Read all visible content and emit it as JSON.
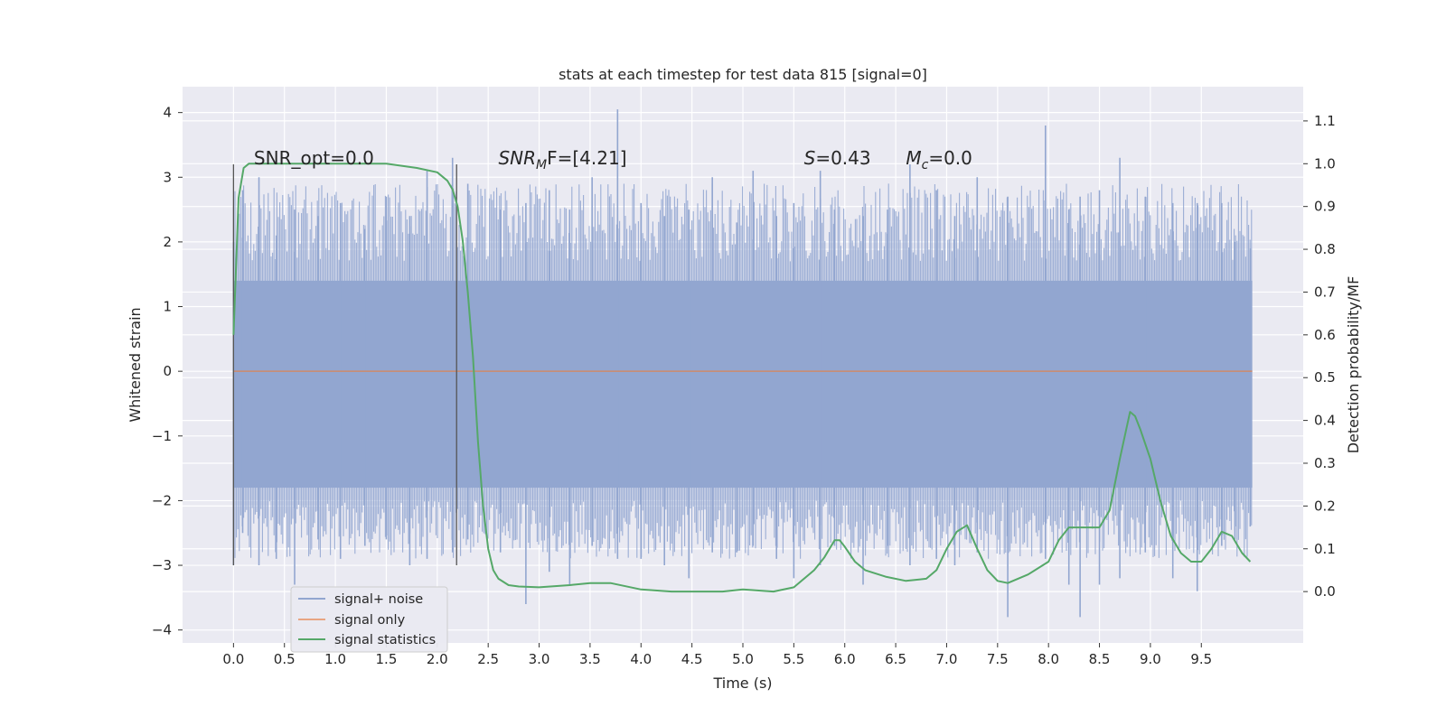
{
  "chart_data": {
    "type": "line",
    "title": "stats at each timestep for test data 815 [signal=0]",
    "xlabel": "Time (s)",
    "ylabel": "Whitened strain",
    "y2label": "Detection probability/MF",
    "xlim": [
      -0.5,
      10.5
    ],
    "ylim": [
      -4.2,
      4.4
    ],
    "y2lim": [
      -0.12,
      1.18
    ],
    "xticks": [
      "0.0",
      "0.5",
      "1.0",
      "1.5",
      "2.0",
      "2.5",
      "3.0",
      "3.5",
      "4.0",
      "4.5",
      "5.0",
      "5.5",
      "6.0",
      "6.5",
      "7.0",
      "7.5",
      "8.0",
      "8.5",
      "9.0",
      "9.5"
    ],
    "yticks": [
      "4",
      "3",
      "2",
      "1",
      "0",
      "−1",
      "−2",
      "−3",
      "−4"
    ],
    "y2ticks": [
      "1.1",
      "1.0",
      "0.9",
      "0.8",
      "0.7",
      "0.6",
      "0.5",
      "0.4",
      "0.3",
      "0.2",
      "0.1",
      "0.0"
    ],
    "grid": true,
    "legend_position": "lower-left",
    "annotations": [
      {
        "id": "snr_opt",
        "text": "SNR_opt=0.0",
        "x": 0.2,
        "y": 3.2
      },
      {
        "id": "snr_mf",
        "prefix": "SNR",
        "sub": "M",
        "suffix": "F=[4.21]",
        "x": 2.6,
        "y": 3.2
      },
      {
        "id": "s",
        "italic": "S",
        "suffix": "=0.43",
        "x": 5.6,
        "y": 3.2
      },
      {
        "id": "mc",
        "italic": "M",
        "sub": "c",
        "suffix": "=0.0",
        "x": 6.6,
        "y": 3.2
      }
    ],
    "vertical_lines": [
      0.0,
      2.19
    ],
    "series": [
      {
        "name": "signal+ noise",
        "color": "#92a6d0",
        "kind": "noise_band",
        "x_range": [
          0.0,
          10.0
        ],
        "band_lower": -1.8,
        "band_upper": 1.4,
        "spikes": [
          [
            0.0,
            2.0,
            -3.0
          ],
          [
            0.09,
            2.8,
            -2.5
          ],
          [
            0.25,
            3.0,
            -3.0
          ],
          [
            0.42,
            2.1,
            -2.9
          ],
          [
            0.6,
            2.5,
            -3.3
          ],
          [
            0.83,
            2.4,
            -2.6
          ],
          [
            1.05,
            2.6,
            -2.9
          ],
          [
            1.29,
            2.2,
            -2.7
          ],
          [
            1.5,
            2.7,
            -2.6
          ],
          [
            1.73,
            2.4,
            -3.0
          ],
          [
            1.9,
            3.1,
            -2.9
          ],
          [
            2.15,
            3.3,
            -2.8
          ],
          [
            2.3,
            2.9,
            -2.6
          ],
          [
            2.62,
            2.5,
            -2.8
          ],
          [
            2.87,
            2.6,
            -3.6
          ],
          [
            3.1,
            2.8,
            -3.1
          ],
          [
            3.3,
            2.5,
            -3.3
          ],
          [
            3.52,
            3.0,
            -2.7
          ],
          [
            3.77,
            4.05,
            -2.9
          ],
          [
            4.0,
            2.6,
            -2.9
          ],
          [
            4.23,
            2.4,
            -3.0
          ],
          [
            4.47,
            2.5,
            -3.2
          ],
          [
            4.7,
            3.0,
            -2.8
          ],
          [
            4.94,
            2.3,
            -2.8
          ],
          [
            5.1,
            3.1,
            -2.7
          ],
          [
            5.33,
            2.4,
            -2.9
          ],
          [
            5.5,
            2.6,
            -3.2
          ],
          [
            5.76,
            3.1,
            -3.0
          ],
          [
            5.9,
            2.5,
            -2.7
          ],
          [
            6.18,
            2.4,
            -3.3
          ],
          [
            6.42,
            2.5,
            -2.7
          ],
          [
            6.64,
            3.2,
            -3.0
          ],
          [
            6.9,
            2.8,
            -2.9
          ],
          [
            7.08,
            2.4,
            -3.0
          ],
          [
            7.3,
            3.0,
            -2.8
          ],
          [
            7.6,
            2.7,
            -3.8
          ],
          [
            7.97,
            3.8,
            -2.9
          ],
          [
            8.2,
            2.5,
            -3.3
          ],
          [
            8.31,
            2.7,
            -3.8
          ],
          [
            8.5,
            2.8,
            -3.3
          ],
          [
            8.7,
            3.3,
            -3.2
          ],
          [
            8.95,
            2.7,
            -2.8
          ],
          [
            9.22,
            2.6,
            -3.2
          ],
          [
            9.46,
            2.6,
            -3.4
          ],
          [
            9.7,
            2.6,
            -2.7
          ],
          [
            9.83,
            2.0,
            -2.6
          ],
          [
            9.98,
            1.9,
            -2.4
          ]
        ]
      },
      {
        "name": "signal only",
        "color": "#dd8452",
        "kind": "line",
        "x": [
          0.0,
          10.0
        ],
        "y": [
          0.0,
          0.0
        ]
      },
      {
        "name": "signal statistics",
        "color": "#55a868",
        "kind": "line",
        "axis": "right",
        "x": [
          0.0,
          0.05,
          0.1,
          0.15,
          0.2,
          0.3,
          0.5,
          1.0,
          1.5,
          1.8,
          2.0,
          2.1,
          2.15,
          2.2,
          2.25,
          2.3,
          2.35,
          2.4,
          2.45,
          2.5,
          2.55,
          2.6,
          2.7,
          2.8,
          3.0,
          3.3,
          3.5,
          3.7,
          4.0,
          4.3,
          4.5,
          4.8,
          5.0,
          5.3,
          5.5,
          5.7,
          5.8,
          5.9,
          5.95,
          6.0,
          6.1,
          6.2,
          6.4,
          6.6,
          6.8,
          6.9,
          7.0,
          7.1,
          7.2,
          7.3,
          7.4,
          7.5,
          7.6,
          7.8,
          8.0,
          8.1,
          8.2,
          8.25,
          8.3,
          8.5,
          8.6,
          8.7,
          8.8,
          8.85,
          8.9,
          9.0,
          9.1,
          9.2,
          9.3,
          9.4,
          9.5,
          9.6,
          9.7,
          9.8,
          9.9,
          9.98
        ],
        "y": [
          0.6,
          0.92,
          0.99,
          1.0,
          1.0,
          1.0,
          1.0,
          1.0,
          1.0,
          0.99,
          0.98,
          0.96,
          0.94,
          0.9,
          0.82,
          0.7,
          0.55,
          0.35,
          0.2,
          0.1,
          0.05,
          0.03,
          0.015,
          0.012,
          0.01,
          0.015,
          0.02,
          0.02,
          0.005,
          0.0,
          0.0,
          0.0,
          0.005,
          0.0,
          0.01,
          0.05,
          0.08,
          0.12,
          0.12,
          0.105,
          0.07,
          0.05,
          0.035,
          0.025,
          0.03,
          0.05,
          0.1,
          0.14,
          0.155,
          0.1,
          0.05,
          0.025,
          0.02,
          0.04,
          0.07,
          0.12,
          0.15,
          0.15,
          0.15,
          0.15,
          0.19,
          0.31,
          0.42,
          0.41,
          0.38,
          0.31,
          0.21,
          0.13,
          0.09,
          0.07,
          0.07,
          0.1,
          0.14,
          0.13,
          0.09,
          0.07
        ]
      }
    ]
  }
}
